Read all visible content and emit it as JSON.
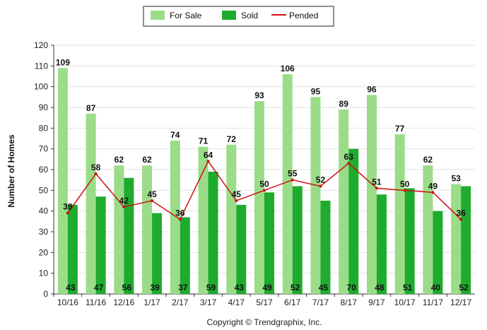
{
  "chart_data": {
    "type": "bar",
    "categories": [
      "10/16",
      "11/16",
      "12/16",
      "1/17",
      "2/17",
      "3/17",
      "4/17",
      "5/17",
      "6/17",
      "7/17",
      "8/17",
      "9/17",
      "10/17",
      "11/17",
      "12/17"
    ],
    "series": [
      {
        "name": "For Sale",
        "kind": "bar",
        "color": "#9bdc88",
        "values": [
          109,
          87,
          62,
          62,
          74,
          71,
          72,
          93,
          106,
          95,
          89,
          96,
          77,
          62,
          53
        ]
      },
      {
        "name": "Sold",
        "kind": "bar",
        "color": "#1eab2e",
        "values": [
          43,
          47,
          56,
          39,
          37,
          59,
          43,
          49,
          52,
          45,
          70,
          48,
          51,
          40,
          52
        ]
      },
      {
        "name": "Pended",
        "kind": "line",
        "color": "#cc1111",
        "values": [
          39,
          58,
          42,
          45,
          36,
          64,
          45,
          50,
          55,
          52,
          63,
          51,
          50,
          49,
          36
        ]
      }
    ],
    "xlabel": "",
    "ylabel": "Number of Homes",
    "ylim": [
      0,
      120
    ],
    "yticks": [
      0,
      10,
      20,
      30,
      40,
      50,
      60,
      70,
      80,
      90,
      100,
      110,
      120
    ],
    "grid": true,
    "legend_position": "top-center",
    "copyright": "Copyright © Trendgraphix, Inc."
  }
}
